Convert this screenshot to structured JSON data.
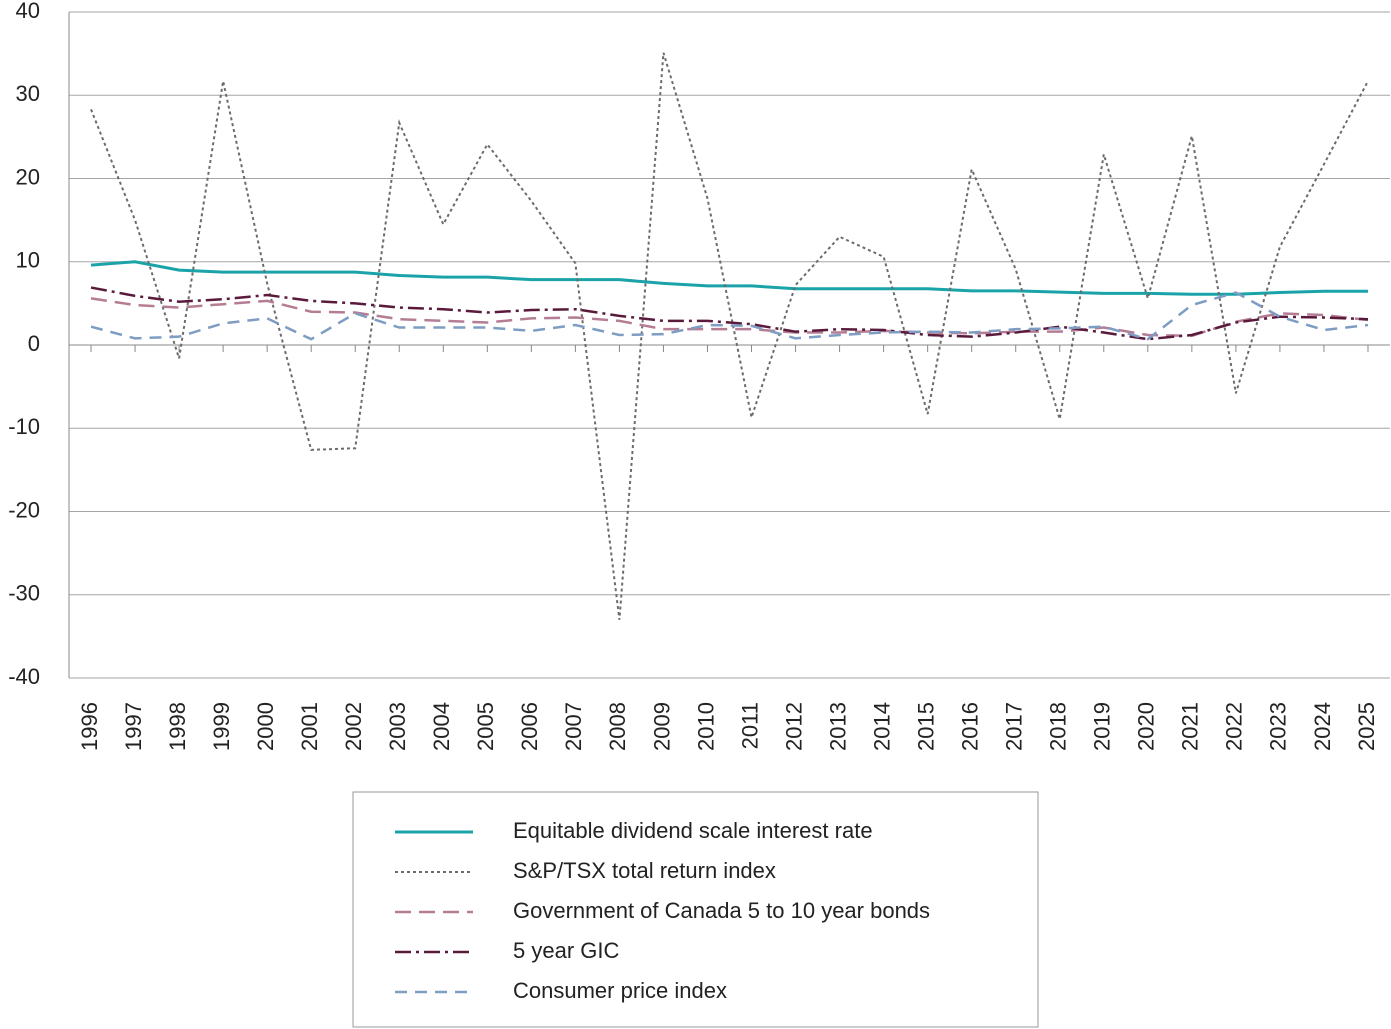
{
  "chart_data": {
    "type": "line",
    "categories": [
      "1996",
      "1997",
      "1998",
      "1999",
      "2000",
      "2001",
      "2002",
      "2003",
      "2004",
      "2005",
      "2006",
      "2007",
      "2008",
      "2009",
      "2010",
      "2011",
      "2012",
      "2013",
      "2014",
      "2015",
      "2016",
      "2017",
      "2018",
      "2019",
      "2020",
      "2021",
      "2022",
      "2023",
      "2024",
      "2025"
    ],
    "ylim": [
      -40,
      40
    ],
    "yticks": [
      -40,
      -30,
      -20,
      -10,
      0,
      10,
      20,
      30,
      40
    ],
    "grid": true,
    "legend": "bottom",
    "series": [
      {
        "name": "Equitable dividend scale interest rate",
        "color": "#1aa3a8",
        "style": "solid",
        "values": [
          9.6,
          10.0,
          9.0,
          8.75,
          8.75,
          8.75,
          8.75,
          8.35,
          8.15,
          8.15,
          7.85,
          7.85,
          7.85,
          7.4,
          7.1,
          7.1,
          6.75,
          6.75,
          6.75,
          6.75,
          6.5,
          6.5,
          6.35,
          6.2,
          6.2,
          6.1,
          6.1,
          6.3,
          6.45,
          6.45
        ]
      },
      {
        "name": "S&P/TSX total return index",
        "color": "#6b6b6b",
        "style": "dotted",
        "values": [
          28.3,
          15,
          -1.6,
          31.7,
          7.4,
          -12.6,
          -12.4,
          26.7,
          14.5,
          24.1,
          17.3,
          9.8,
          -33,
          35.1,
          17.6,
          -8.7,
          7.2,
          13,
          10.6,
          -8.3,
          21.1,
          9.1,
          -8.9,
          22.9,
          5.6,
          25.1,
          -5.8,
          11.8,
          21.7,
          31.7
        ]
      },
      {
        "name": "Government of Canada 5 to 10 year bonds",
        "color": "#b57d94",
        "style": "dashed",
        "values": [
          5.6,
          4.8,
          4.5,
          4.9,
          5.3,
          4.0,
          3.9,
          3.1,
          2.9,
          2.7,
          3.2,
          3.3,
          2.9,
          1.9,
          1.9,
          1.9,
          1.5,
          1.5,
          1.7,
          1.5,
          1.4,
          1.6,
          1.6,
          2.1,
          1.2,
          1.1,
          2.8,
          3.8,
          3.6,
          3.0
        ]
      },
      {
        "name": "5 year GIC",
        "color": "#5a1a3c",
        "style": "dashdot",
        "values": [
          6.9,
          5.9,
          5.2,
          5.5,
          6.0,
          5.3,
          5.0,
          4.5,
          4.3,
          3.9,
          4.2,
          4.3,
          3.5,
          2.9,
          2.9,
          2.5,
          1.6,
          1.9,
          1.8,
          1.2,
          1.0,
          1.5,
          2.2,
          1.5,
          0.7,
          1.2,
          2.7,
          3.4,
          3.3,
          3.1
        ]
      },
      {
        "name": "Consumer price index",
        "color": "#7d9dc2",
        "style": "dashed-long",
        "values": [
          2.2,
          0.8,
          1.0,
          2.6,
          3.2,
          0.7,
          3.8,
          2.1,
          2.1,
          2.1,
          1.7,
          2.4,
          1.2,
          1.3,
          2.4,
          2.3,
          0.8,
          1.2,
          1.5,
          1.6,
          1.5,
          1.9,
          2.0,
          2.2,
          0.7,
          4.8,
          6.3,
          3.4,
          1.8,
          2.4
        ]
      }
    ]
  }
}
